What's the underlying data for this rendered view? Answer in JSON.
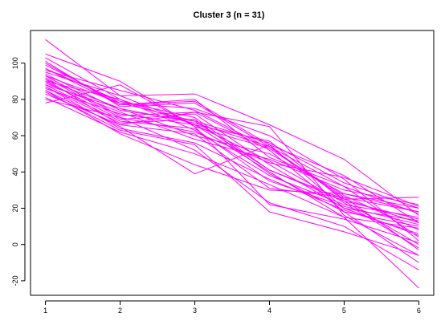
{
  "chart_data": {
    "type": "line",
    "title": "Cluster 3 (n = 31)",
    "xlabel": "",
    "ylabel": "",
    "x": [
      1,
      2,
      3,
      4,
      5,
      6
    ],
    "xticks": [
      "1",
      "2",
      "3",
      "4",
      "5",
      "6"
    ],
    "yticks": [
      "-20",
      "0",
      "20",
      "40",
      "60",
      "80",
      "100"
    ],
    "xlim": [
      0.8,
      6.2
    ],
    "ylim": [
      -28,
      118
    ],
    "grid": false,
    "color": "#FF00FF",
    "series": [
      {
        "values": [
          113,
          82,
          66,
          40,
          15,
          -24
        ]
      },
      {
        "values": [
          105,
          90,
          65,
          53,
          27,
          8
        ]
      },
      {
        "values": [
          103,
          80,
          66,
          57,
          24,
          14
        ]
      },
      {
        "values": [
          101,
          76,
          78,
          54,
          32,
          17
        ]
      },
      {
        "values": [
          100,
          77,
          79,
          55,
          38,
          12
        ]
      },
      {
        "values": [
          99,
          78,
          75,
          60,
          36,
          2
        ]
      },
      {
        "values": [
          97,
          77,
          80,
          48,
          32,
          4
        ]
      },
      {
        "values": [
          97,
          79,
          70,
          41,
          25,
          26
        ]
      },
      {
        "values": [
          96,
          85,
          74,
          53,
          26,
          18
        ]
      },
      {
        "values": [
          95,
          82,
          83,
          66,
          47,
          16
        ]
      },
      {
        "values": [
          94,
          74,
          68,
          56,
          34,
          20
        ]
      },
      {
        "values": [
          93,
          71,
          73,
          52,
          18,
          10
        ]
      },
      {
        "values": [
          93,
          78,
          68,
          41,
          24,
          0
        ]
      },
      {
        "values": [
          92,
          70,
          62,
          45,
          37,
          21
        ]
      },
      {
        "values": [
          91,
          75,
          67,
          54,
          25,
          12
        ]
      },
      {
        "values": [
          91,
          66,
          73,
          65,
          16,
          -6
        ]
      },
      {
        "values": [
          90,
          80,
          63,
          38,
          22,
          15
        ]
      },
      {
        "values": [
          90,
          69,
          72,
          44,
          20,
          5
        ]
      },
      {
        "values": [
          89,
          73,
          58,
          47,
          30,
          22
        ]
      },
      {
        "values": [
          88,
          68,
          64,
          35,
          21,
          11
        ]
      },
      {
        "values": [
          88,
          75,
          60,
          50,
          28,
          18
        ]
      },
      {
        "values": [
          87,
          67,
          69,
          39,
          18,
          -10
        ]
      },
      {
        "values": [
          87,
          64,
          56,
          36,
          19,
          6
        ]
      },
      {
        "values": [
          86,
          72,
          66,
          46,
          23,
          -2
        ]
      },
      {
        "values": [
          85,
          65,
          39,
          55,
          20,
          13
        ]
      },
      {
        "values": [
          85,
          61,
          44,
          30,
          28,
          20
        ]
      },
      {
        "values": [
          84,
          63,
          55,
          18,
          7,
          -6
        ]
      },
      {
        "values": [
          83,
          66,
          61,
          31,
          26,
          -3
        ]
      },
      {
        "values": [
          81,
          62,
          50,
          33,
          15,
          9
        ]
      },
      {
        "values": [
          80,
          70,
          52,
          23,
          10,
          -14
        ]
      },
      {
        "values": [
          78,
          88,
          65,
          22,
          14,
          1
        ]
      }
    ]
  }
}
